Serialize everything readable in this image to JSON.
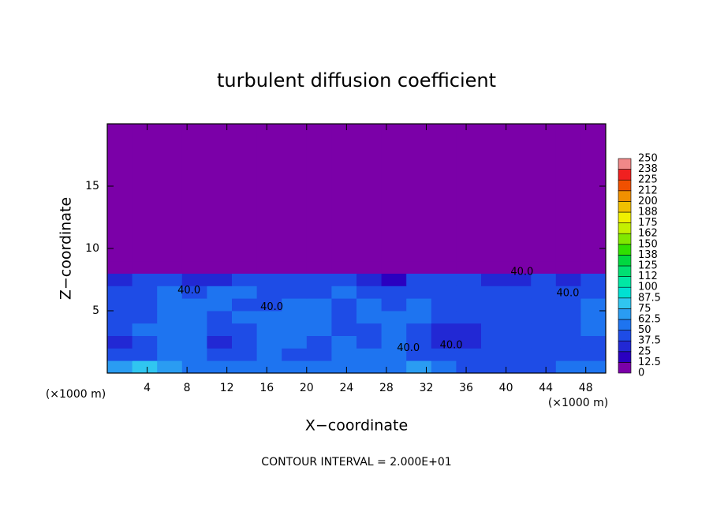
{
  "chart_data": {
    "type": "contour",
    "title": "turbulent diffusion coefficient",
    "x_label": "X−coordinate",
    "y_label": "Z−coordinate",
    "x_unit": "(×1000 m)",
    "x_unit_right": "(×1000 m)",
    "footer": "CONTOUR INTERVAL = 2.000E+01",
    "xlim": [
      0,
      50
    ],
    "ylim": [
      0,
      20
    ],
    "xticks": [
      4,
      8,
      12,
      16,
      20,
      24,
      28,
      32,
      36,
      40,
      44,
      48
    ],
    "yticks": [
      5,
      10,
      15
    ],
    "x_edges": [
      0,
      2.5,
      5,
      7.5,
      10,
      12.5,
      15,
      17.5,
      20,
      22.5,
      25,
      27.5,
      30,
      32.5,
      35,
      37.5,
      40,
      42.5,
      45,
      47.5,
      50
    ],
    "z_edges": [
      0,
      1,
      2,
      3,
      4,
      5,
      6,
      7,
      8,
      9,
      20
    ],
    "values": [
      [
        70,
        75,
        70,
        60,
        55,
        60,
        60,
        55,
        55,
        60,
        60,
        55,
        65,
        50,
        45,
        40,
        40,
        45,
        50,
        55
      ],
      [
        40,
        45,
        55,
        60,
        40,
        45,
        50,
        45,
        40,
        55,
        50,
        60,
        45,
        40,
        38,
        40,
        42,
        40,
        45,
        40
      ],
      [
        35,
        45,
        55,
        60,
        35,
        45,
        50,
        50,
        45,
        50,
        40,
        55,
        40,
        35,
        35,
        38,
        40,
        38,
        40,
        45
      ],
      [
        40,
        50,
        60,
        55,
        40,
        40,
        55,
        50,
        50,
        45,
        45,
        55,
        45,
        35,
        35,
        38,
        40,
        40,
        45,
        50
      ],
      [
        45,
        40,
        60,
        50,
        45,
        50,
        55,
        55,
        50,
        45,
        50,
        55,
        50,
        40,
        38,
        40,
        40,
        40,
        45,
        50
      ],
      [
        40,
        45,
        55,
        50,
        50,
        45,
        45,
        50,
        55,
        45,
        50,
        45,
        55,
        45,
        40,
        40,
        40,
        40,
        45,
        50
      ],
      [
        40,
        45,
        55,
        45,
        50,
        50,
        45,
        45,
        45,
        50,
        40,
        45,
        45,
        45,
        40,
        40,
        40,
        40,
        40,
        45
      ],
      [
        35,
        40,
        40,
        35,
        35,
        40,
        40,
        40,
        40,
        40,
        30,
        20,
        40,
        40,
        40,
        35,
        35,
        40,
        35,
        40
      ],
      [
        0,
        0,
        0,
        0,
        0,
        0,
        0,
        0,
        0,
        0,
        0,
        0,
        5,
        10,
        10,
        5,
        5,
        0,
        0,
        0
      ],
      [
        0,
        0,
        0,
        0,
        0,
        0,
        0,
        0,
        0,
        0,
        0,
        0,
        0,
        0,
        0,
        0,
        0,
        0,
        0,
        0
      ]
    ],
    "contour_labels": [
      {
        "x": 16.5,
        "z": 5.3,
        "level": 40,
        "label": "40.0"
      },
      {
        "x": 8.2,
        "z": 6.6,
        "level": 40,
        "label": "40.0"
      },
      {
        "x": 34.5,
        "z": 2.2,
        "level": 40,
        "label": "40.0"
      },
      {
        "x": 30.2,
        "z": 2.0,
        "level": 40,
        "label": "40.0"
      },
      {
        "x": 41.6,
        "z": 8.1,
        "level": 40,
        "label": "40.0"
      },
      {
        "x": 46.2,
        "z": 6.4,
        "level": 40,
        "label": "40.0"
      }
    ],
    "colorbar_ticks": [
      0,
      12.5,
      25,
      37.5,
      50,
      62.5,
      75,
      87.5,
      100,
      {
        "value": 112.5,
        "label": "112"
      },
      125,
      {
        "value": 137.5,
        "label": "138"
      },
      150,
      {
        "value": 162.5,
        "label": "162"
      },
      175,
      {
        "value": 187.5,
        "label": "188"
      },
      200,
      {
        "value": 212.5,
        "label": "212"
      },
      225,
      {
        "value": 237.5,
        "label": "238"
      },
      250
    ],
    "colors": [
      "#7b00a8",
      "#2a00c0",
      "#2228d4",
      "#1e4ce6",
      "#1e74f0",
      "#2a9cf2",
      "#30c6f0",
      "#00e0d2",
      "#00e8a4",
      "#00e072",
      "#00d840",
      "#30e000",
      "#80e800",
      "#c4f000",
      "#f0f000",
      "#f0c000",
      "#f09000",
      "#f05000",
      "#f02020",
      "#f08888"
    ]
  }
}
